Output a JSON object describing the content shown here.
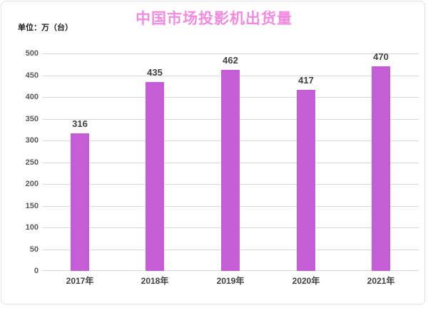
{
  "chart_data": {
    "type": "bar",
    "title": "中国市场投影机出货量",
    "unit_label": "单位：万（台）",
    "categories": [
      "2017年",
      "2018年",
      "2019年",
      "2020年",
      "2021年"
    ],
    "values": [
      316,
      435,
      462,
      417,
      470
    ],
    "ylim": [
      0,
      500
    ],
    "ytick_step": 50,
    "grid": true,
    "legend_position": "none",
    "colors": {
      "bar": "#c55ed6",
      "title": "#f28ae2",
      "gridline": "#d9d9d9",
      "y_tick_label": "#595959",
      "value_label": "#404040",
      "x_axis_label": "#3f3f3f",
      "card_border": "#e3e3e3"
    }
  }
}
